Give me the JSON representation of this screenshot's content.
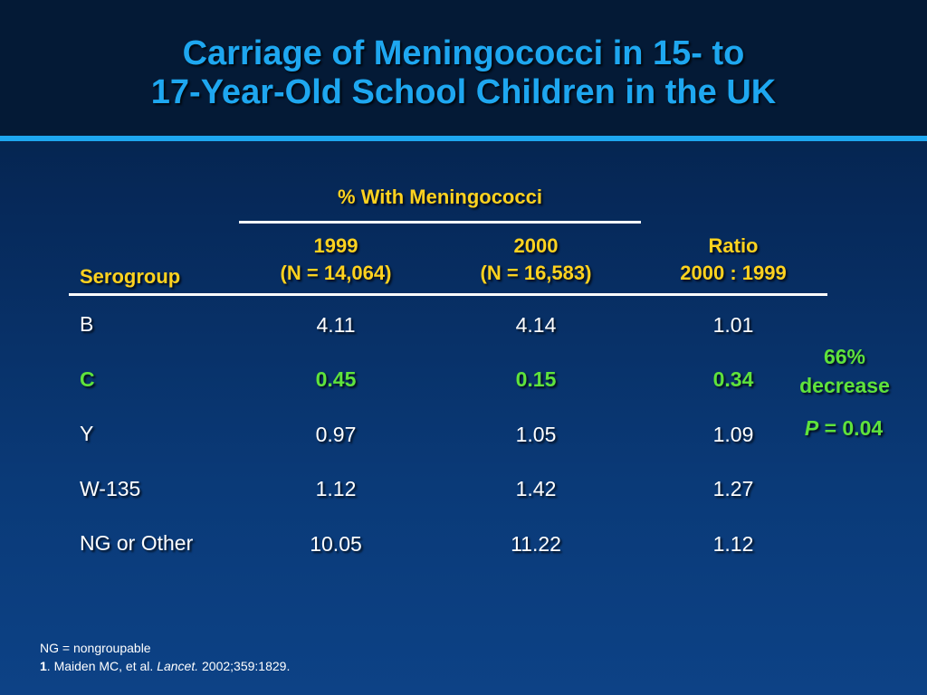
{
  "title": {
    "line1": "Carriage of Meningococci in 15- to",
    "line2": "17-Year-Old School Children in the UK"
  },
  "table": {
    "group_header": "% With Meningococci",
    "columns": {
      "serogroup": "Serogroup",
      "y1999_line1": "1999",
      "y1999_line2": "(N = 14,064)",
      "y2000_line1": "2000",
      "y2000_line2": "(N = 16,583)",
      "ratio_line1": "Ratio",
      "ratio_line2": "2000 : 1999"
    },
    "rows": [
      {
        "serogroup": "B",
        "y1999": "4.11",
        "y2000": "4.14",
        "ratio": "1.01"
      },
      {
        "serogroup": "C",
        "y1999": "0.45",
        "y2000": "0.15",
        "ratio": "0.34"
      },
      {
        "serogroup": "Y",
        "y1999": "0.97",
        "y2000": "1.05",
        "ratio": "1.09"
      },
      {
        "serogroup": "W-135",
        "y1999": "1.12",
        "y2000": "1.42",
        "ratio": "1.27"
      },
      {
        "serogroup": "NG or Other",
        "y1999": "10.05",
        "y2000": "11.22",
        "ratio": "1.12"
      }
    ]
  },
  "annotation": {
    "line1": "66%",
    "line2": "decrease",
    "p_label": "P",
    "p_value": "= 0.04"
  },
  "footnotes": {
    "abbrev": "NG = nongroupable",
    "ref_number": "1",
    "ref_authors": ". Maiden MC, et al. ",
    "ref_journal": "Lancet.",
    "ref_citation": " 2002;359:1829."
  },
  "colors": {
    "title": "#1ea7f0",
    "header": "#ffd21f",
    "highlight": "#5fe33b",
    "text": "#ffffff"
  }
}
